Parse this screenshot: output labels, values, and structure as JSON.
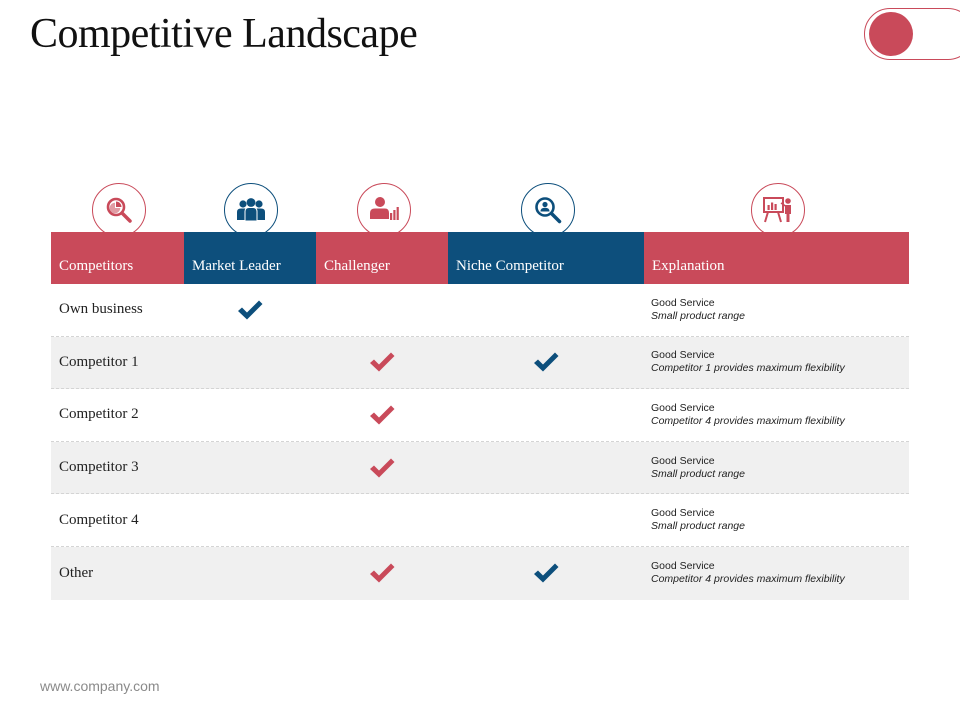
{
  "title": "Competitive Landscape",
  "footer": "www.company.com",
  "colors": {
    "accent_red": "#c94a5a",
    "accent_blue": "#0d4f7c"
  },
  "columns": [
    {
      "label": "Competitors",
      "icon": "magnifier-pie-chart-icon",
      "color": "red"
    },
    {
      "label": "Market Leader",
      "icon": "team-group-icon",
      "color": "blue"
    },
    {
      "label": "Challenger",
      "icon": "person-bar-chart-icon",
      "color": "red"
    },
    {
      "label": "Niche Competitor",
      "icon": "magnifier-person-icon",
      "color": "blue"
    },
    {
      "label": "Explanation",
      "icon": "presenter-board-icon",
      "color": "red"
    }
  ],
  "rows": [
    {
      "name": "Own business",
      "market_leader": true,
      "challenger": false,
      "niche": false,
      "expl_title": "Good Service",
      "expl_detail": "Small product range"
    },
    {
      "name": "Competitor 1",
      "market_leader": false,
      "challenger": true,
      "niche": true,
      "expl_title": "Good Service",
      "expl_detail": "Competitor 1 provides maximum flexibility"
    },
    {
      "name": "Competitor 2",
      "market_leader": false,
      "challenger": true,
      "niche": false,
      "expl_title": "Good Service",
      "expl_detail": "Competitor 4 provides maximum flexibility"
    },
    {
      "name": "Competitor 3",
      "market_leader": false,
      "challenger": true,
      "niche": false,
      "expl_title": "Good Service",
      "expl_detail": "Small product range"
    },
    {
      "name": "Competitor 4",
      "market_leader": false,
      "challenger": false,
      "niche": false,
      "expl_title": "Good Service",
      "expl_detail": "Small product range"
    },
    {
      "name": "Other",
      "market_leader": false,
      "challenger": true,
      "niche": true,
      "expl_title": "Good Service",
      "expl_detail": "Competitor 4 provides maximum flexibility"
    }
  ]
}
